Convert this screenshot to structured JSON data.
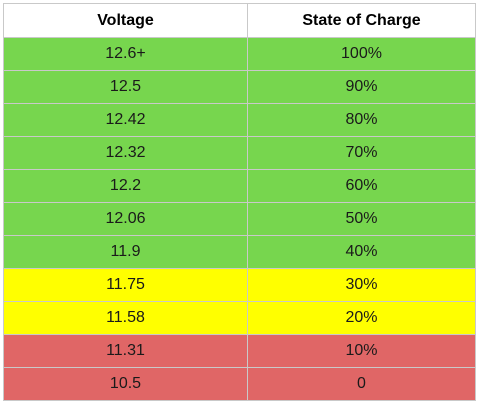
{
  "table": {
    "headers": [
      "Voltage",
      "State of Charge"
    ],
    "rows": [
      {
        "voltage": "12.6+",
        "soc": "100%",
        "color": "#77d64e"
      },
      {
        "voltage": "12.5",
        "soc": "90%",
        "color": "#77d64e"
      },
      {
        "voltage": "12.42",
        "soc": "80%",
        "color": "#77d64e"
      },
      {
        "voltage": "12.32",
        "soc": "70%",
        "color": "#77d64e"
      },
      {
        "voltage": "12.2",
        "soc": "60%",
        "color": "#77d64e"
      },
      {
        "voltage": "12.06",
        "soc": "50%",
        "color": "#77d64e"
      },
      {
        "voltage": "11.9",
        "soc": "40%",
        "color": "#77d64e"
      },
      {
        "voltage": "11.75",
        "soc": "30%",
        "color": "#ffff00"
      },
      {
        "voltage": "11.58",
        "soc": "20%",
        "color": "#ffff00"
      },
      {
        "voltage": "11.31",
        "soc": "10%",
        "color": "#e06666"
      },
      {
        "voltage": "10.5",
        "soc": "0",
        "color": "#e06666"
      }
    ]
  }
}
